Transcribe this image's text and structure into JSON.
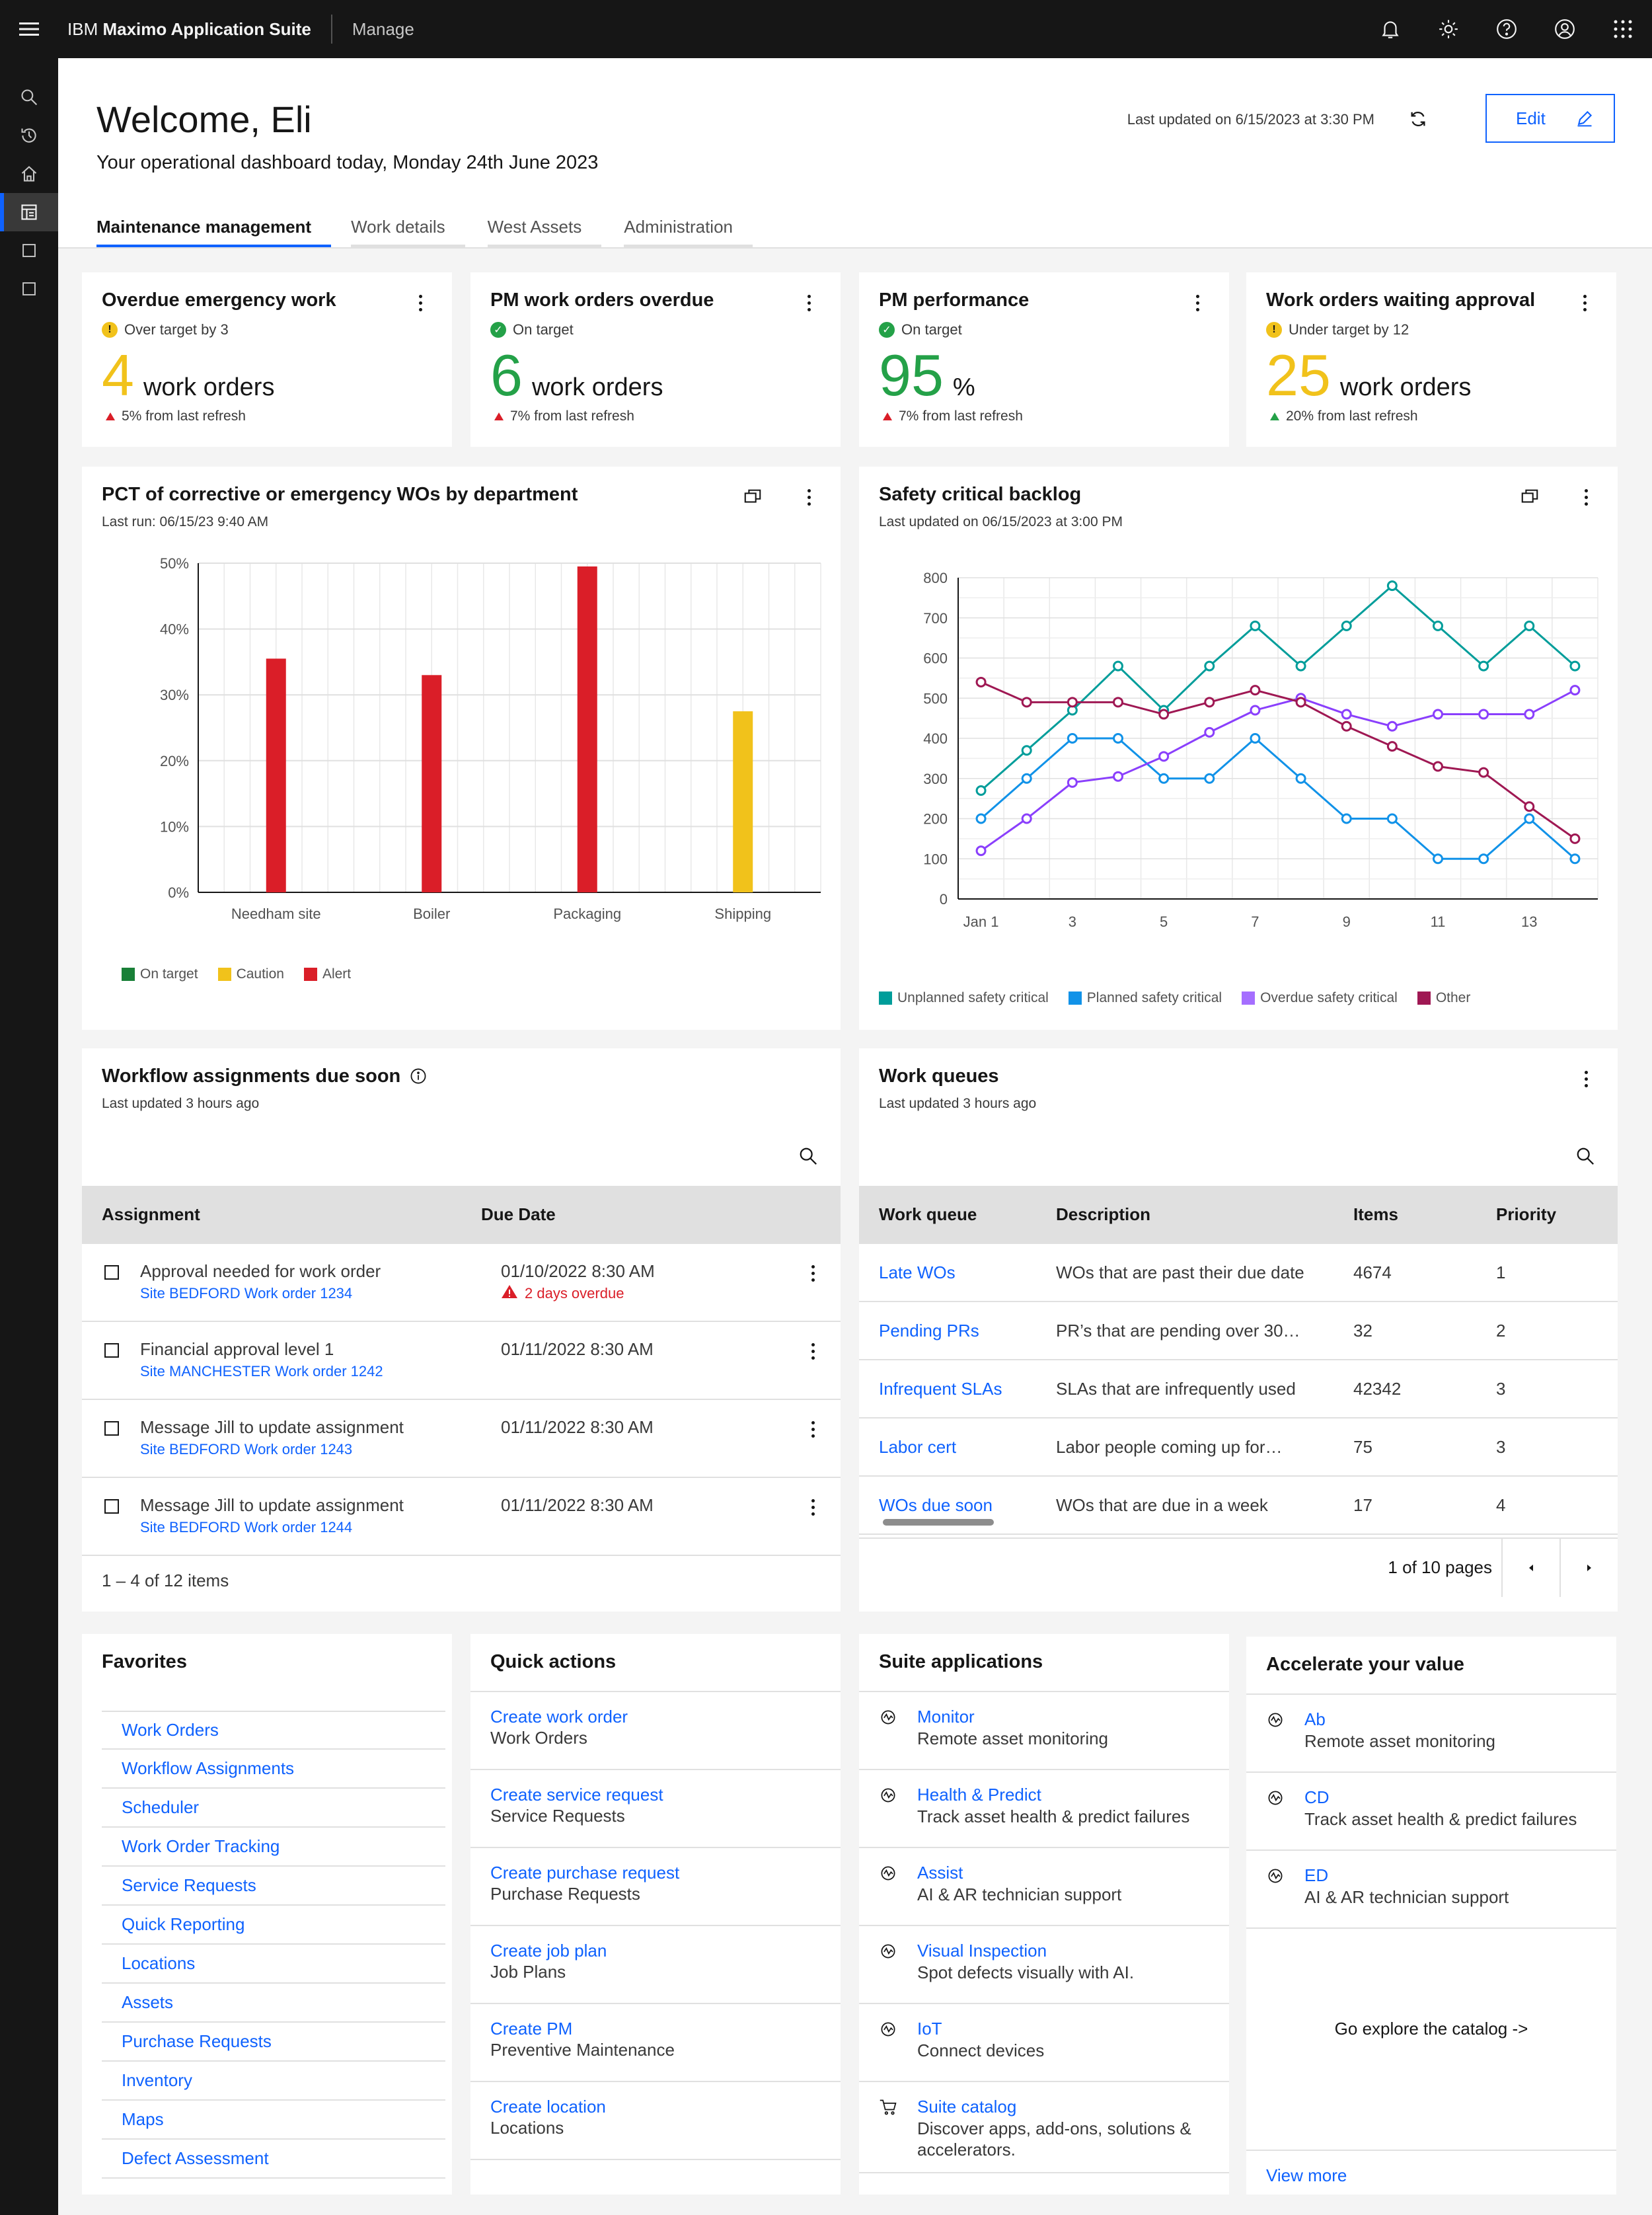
{
  "topbar": {
    "brand_bold": "IBM",
    "brand_name": "Maximo Application Suite",
    "module": "Manage",
    "icons": [
      "notification-icon",
      "settings-icon",
      "help-icon",
      "user-avatar-icon",
      "app-switcher-icon"
    ]
  },
  "sidenav": {
    "items": [
      "search-icon",
      "recent-icon",
      "home-icon",
      "dashboard-icon",
      "page-icon",
      "page-icon"
    ]
  },
  "header": {
    "welcome": "Welcome, Eli",
    "subtitle": "Your operational dashboard today, Monday 24th June 2023",
    "last_updated": "Last updated on 6/15/2023 at 3:30 PM",
    "edit_label": "Edit",
    "tabs": [
      "Maintenance management",
      "Work details",
      "West Assets",
      "Administration"
    ]
  },
  "kpis": [
    {
      "title": "Overdue emergency work",
      "status": "Over target by 3",
      "value": "4",
      "unit": "work orders",
      "delta": "5% from last refresh",
      "color": "#f1c21b",
      "status_color": "#f1c21b",
      "delta_color": "#da1e28"
    },
    {
      "title": "PM work orders overdue",
      "status": "On target",
      "value": "6",
      "unit": "work orders",
      "delta": "7% from last refresh",
      "color": "#24a148",
      "status_color": "#24a148",
      "delta_color": "#da1e28"
    },
    {
      "title": "PM performance",
      "status": "On target",
      "value": "95",
      "unit": "%",
      "delta": "7% from last refresh",
      "color": "#24a148",
      "status_color": "#24a148",
      "delta_color": "#da1e28"
    },
    {
      "title": "Work orders waiting approval",
      "status": "Under target by 12",
      "value": "25",
      "unit": "work orders",
      "delta": "20% from last refresh",
      "color": "#f1c21b",
      "status_color": "#f1c21b",
      "delta_color": "#24a148"
    }
  ],
  "bar_card": {
    "title": "PCT of corrective or emergency WOs by department",
    "subtitle": "Last run: 06/15/23 9:40 AM"
  },
  "line_card": {
    "title": "Safety critical backlog",
    "subtitle": "Last updated on 06/15/2023 at 3:00 PM"
  },
  "chart_data": [
    {
      "type": "bar",
      "title": "PCT of corrective or emergency WOs by department",
      "categories": [
        "Needham site",
        "Boiler",
        "Packaging",
        "Shipping"
      ],
      "values": [
        35.5,
        33,
        49.5,
        27.5
      ],
      "colors": [
        "#da1e28",
        "#da1e28",
        "#da1e28",
        "#f1c21b"
      ],
      "ylim": [
        0,
        50
      ],
      "yticks": [
        "0%",
        "10%",
        "20%",
        "30%",
        "40%",
        "50%"
      ],
      "grid": true,
      "legend": [
        {
          "name": "On target",
          "color": "#198038"
        },
        {
          "name": "Caution",
          "color": "#f1c21b"
        },
        {
          "name": "Alert",
          "color": "#da1e28"
        }
      ]
    },
    {
      "type": "line",
      "title": "Safety critical backlog",
      "x": [
        1,
        2,
        3,
        4,
        5,
        6,
        7,
        8,
        9,
        10,
        11,
        12,
        13,
        14
      ],
      "xticks": [
        {
          "v": 1,
          "label": "Jan 1"
        },
        {
          "v": 3,
          "label": "3"
        },
        {
          "v": 5,
          "label": "5"
        },
        {
          "v": 7,
          "label": "7"
        },
        {
          "v": 9,
          "label": "9"
        },
        {
          "v": 11,
          "label": "11"
        },
        {
          "v": 13,
          "label": "13"
        }
      ],
      "ylim": [
        0,
        800
      ],
      "yticks": [
        0,
        100,
        200,
        300,
        400,
        500,
        600,
        700,
        800
      ],
      "grid": true,
      "series": [
        {
          "name": "Unplanned safety critical",
          "color": "#009d9a",
          "values": [
            270,
            370,
            470,
            580,
            470,
            580,
            680,
            580,
            680,
            780,
            680,
            580,
            680,
            580
          ]
        },
        {
          "name": "Planned safety critical",
          "color": "#1192e8",
          "values": [
            200,
            300,
            400,
            400,
            300,
            300,
            400,
            300,
            200,
            200,
            100,
            100,
            200,
            100
          ]
        },
        {
          "name": "Overdue safety critical",
          "color": "#8a3ffc",
          "values": [
            120,
            200,
            290,
            305,
            355,
            415,
            470,
            500,
            460,
            430,
            460,
            460,
            460,
            520
          ]
        },
        {
          "name": "Other",
          "color": "#9f1853",
          "values": [
            540,
            490,
            490,
            490,
            460,
            490,
            520,
            490,
            430,
            380,
            330,
            315,
            230,
            150
          ]
        }
      ]
    }
  ],
  "workflow": {
    "title": "Workflow assignments due soon",
    "subtitle": "Last updated 3 hours ago",
    "col_assignment": "Assignment",
    "col_due": "Due Date",
    "rows": [
      {
        "title": "Approval needed for work order",
        "link": "Site BEDFORD Work order 1234",
        "due": "01/10/2022 8:30 AM",
        "warn": "2 days overdue"
      },
      {
        "title": "Financial approval level 1",
        "link": "Site MANCHESTER Work order 1242",
        "due": "01/11/2022 8:30 AM",
        "warn": ""
      },
      {
        "title": "Message Jill to update assignment",
        "link": "Site BEDFORD Work order 1243",
        "due": "01/11/2022 8:30 AM",
        "warn": ""
      },
      {
        "title": "Message Jill to update assignment",
        "link": "Site BEDFORD Work order 1244",
        "due": "01/11/2022 8:30 AM",
        "warn": ""
      }
    ],
    "footer": "1 – 4 of 12 items"
  },
  "queues": {
    "title": "Work queues",
    "subtitle": "Last updated 3 hours ago",
    "cols": [
      "Work queue",
      "Description",
      "Items",
      "Priority"
    ],
    "rows": [
      {
        "queue": "Late WOs",
        "desc": "WOs that are past their due date",
        "items": "4674",
        "priority": "1"
      },
      {
        "queue": "Pending PRs",
        "desc": "PR’s that are pending over 30…",
        "items": "32",
        "priority": "2"
      },
      {
        "queue": "Infrequent SLAs",
        "desc": "SLAs that are infrequently used",
        "items": "42342",
        "priority": "3"
      },
      {
        "queue": "Labor cert",
        "desc": "Labor people coming up for…",
        "items": "75",
        "priority": "3"
      },
      {
        "queue": "WOs due soon",
        "desc": "WOs that are due in a week",
        "items": "17",
        "priority": "4"
      }
    ],
    "pagination": "1 of 10 pages"
  },
  "favorites": {
    "title": "Favorites",
    "items": [
      "Work Orders",
      "Workflow Assignments",
      "Scheduler",
      "Work Order Tracking",
      "Service Requests",
      "Quick Reporting",
      "Locations",
      "Assets",
      "Purchase Requests",
      "Inventory",
      "Maps",
      "Defect Assessment"
    ]
  },
  "quick_actions": {
    "title": "Quick actions",
    "items": [
      {
        "action": "Create work order",
        "app": "Work Orders"
      },
      {
        "action": "Create service request",
        "app": "Service Requests"
      },
      {
        "action": "Create purchase request",
        "app": "Purchase Requests"
      },
      {
        "action": "Create job plan",
        "app": "Job Plans"
      },
      {
        "action": "Create PM",
        "app": "Preventive Maintenance"
      },
      {
        "action": "Create location",
        "app": "Locations"
      }
    ]
  },
  "suite_apps": {
    "title": "Suite applications",
    "items": [
      {
        "name": "Monitor",
        "desc": "Remote asset monitoring",
        "icon": "monitor-icon"
      },
      {
        "name": "Health & Predict",
        "desc": "Track asset health & predict failures",
        "icon": "health-icon"
      },
      {
        "name": "Assist",
        "desc": "AI & AR technician support",
        "icon": "assist-icon"
      },
      {
        "name": "Visual Inspection",
        "desc": "Spot defects visually with AI.",
        "icon": "visual-inspection-icon"
      },
      {
        "name": "IoT",
        "desc": "Connect devices",
        "icon": "iot-icon"
      },
      {
        "name": "Suite catalog",
        "desc": "Discover apps, add-ons, solutions & accelerators.",
        "icon": "cart-icon"
      }
    ]
  },
  "accelerate": {
    "title": "Accelerate your value",
    "items": [
      {
        "name": "Ab",
        "desc": "Remote asset monitoring"
      },
      {
        "name": "CD",
        "desc": "Track asset health & predict failures"
      },
      {
        "name": "ED",
        "desc": "AI & AR technician support"
      }
    ],
    "explore": "Go explore the catalog ->",
    "view_more": "View more"
  }
}
